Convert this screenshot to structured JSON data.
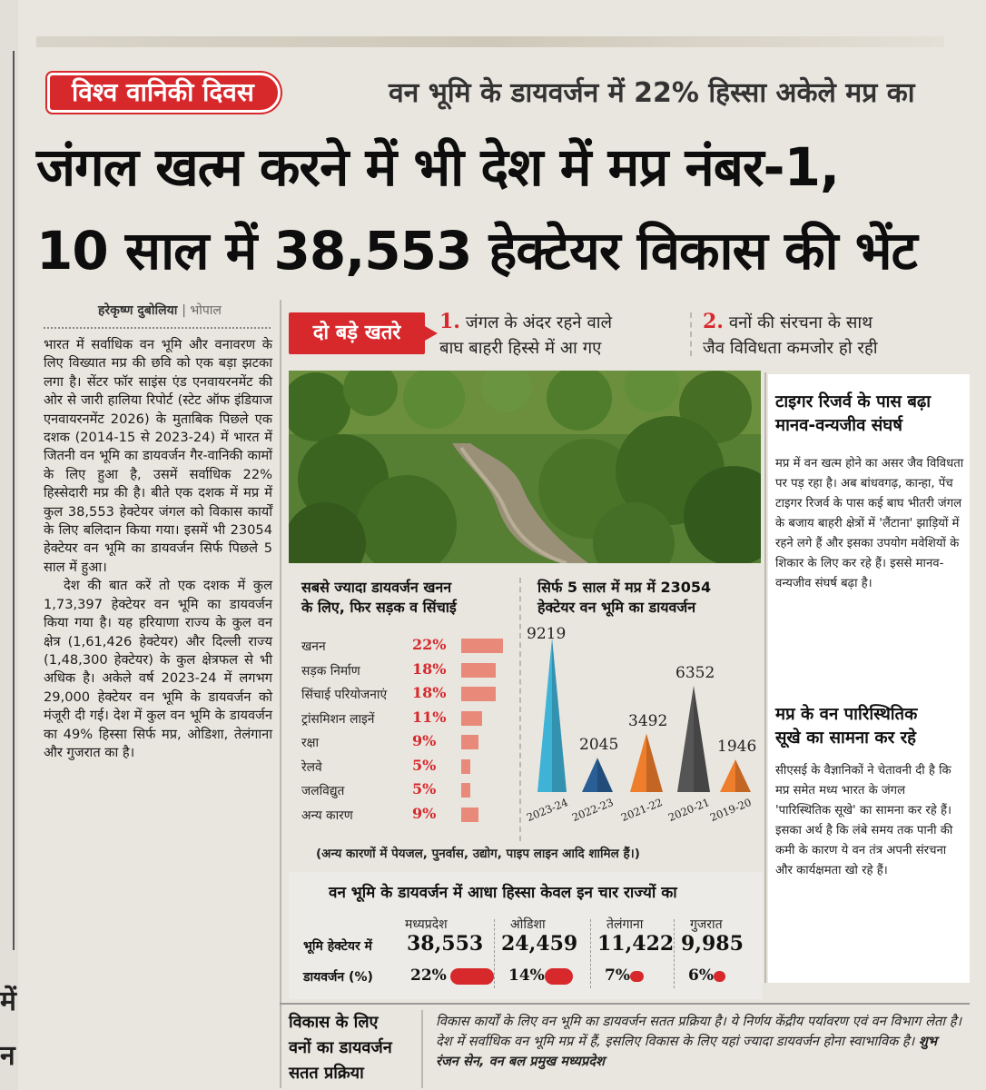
{
  "edge": {
    "word1": "में",
    "word2": "न"
  },
  "kicker": "विश्व वानिकी दिवस",
  "subhead": "वन भूमि के डायवर्जन में 22% हिस्सा अकेले मप्र का",
  "headline": {
    "line1": "जंगल खत्म करने में भी देश में मप्र नंबर-1,",
    "line2": "10 साल में 38,553 हेक्टेयर विकास की भेंट"
  },
  "byline": {
    "author": "हरेकृष्ण दुबोलिया",
    "city": "| भोपाल"
  },
  "body": [
    "भारत में सर्वाधिक वन भूमि और वनावरण के लिए विख्यात मप्र की छवि को एक बड़ा झटका लगा है। सेंटर फॉर साइंस एंड एनवायरनमेंट की ओर से जारी हालिया रिपोर्ट (स्टेट ऑफ इंडियाज एनवायरनमेंट 2026) के मुताबिक पिछले एक दशक (2014-15 से 2023-24) में भारत में जितनी वन भूमि का डायवर्जन गैर-वानिकी कामों के लिए हुआ है, उसमें सर्वाधिक 22% हिस्सेदारी मप्र की है। बीते एक दशक में मप्र में कुल 38,553 हेक्टेयर जंगल को विकास कार्यों के लिए बलिदान किया गया। इसमें भी 23054 हेक्टेयर वन भूमि का डायवर्जन सिर्फ पिछले 5 साल में हुआ।",
    "देश की बात करें तो एक दशक में कुल 1,73,397 हेक्टेयर वन भूमि का डायवर्जन किया गया है। यह हरियाणा राज्य के कुल वन क्षेत्र (1,61,426 हेक्टेयर) और दिल्ली राज्य (1,48,300 हेक्टेयर) के कुल क्षेत्रफल से भी अधिक है। अकेले वर्ष 2023-24 में लगभग 29,000 हेक्टेयर वन भूमि के डायवर्जन को मंजूरी दी गई। देश में कुल वन भूमि के डायवर्जन का 49% हिस्सा सिर्फ मप्र, ओडिशा, तेलंगाना और गुजरात का है।"
  ],
  "threats": {
    "tag": "दो बड़े खतरे",
    "t1_num": "1.",
    "t1_line1": "जंगल के अंदर रहने वाले",
    "t1_line2": "बाघ बाहरी हिस्से में आ गए",
    "t2_num": "2.",
    "t2_line1": "वनों की संरचना के साथ",
    "t2_line2": "जैव विविधता कमजोर हो रही"
  },
  "sidebar": {
    "head1_line1": "टाइगर रिजर्व के पास बढ़ा",
    "head1_line2": "मानव-वन्यजीव संघर्ष",
    "text1": "मप्र में वन खत्म होने का असर जैव विविधता पर पड़ रहा है। अब बांधवगढ़, कान्हा, पेंच टाइगर रिजर्व के पास कई बाघ भीतरी जंगल के बजाय बाहरी क्षेत्रों में 'लैंटाना' झाड़ियों में रहने लगे हैं और इसका उपयोग मवेशियों के शिकार के लिए कर रहे हैं। इससे मानव-वन्यजीव संघर्ष बढ़ा है।",
    "head2_line1": "मप्र के वन पारिस्थितिक",
    "head2_line2": "सूखे का सामना कर रहे",
    "text2": "सीएसई के वैज्ञानिकों ने चेतावनी दी है कि मप्र समेत मध्य भारत के जंगल 'पारिस्थितिक सूखे' का सामना कर रहे हैं। इसका अर्थ है कि लंबे समय तक पानी की कमी के कारण ये वन तंत्र अपनी संरचना और कार्यक्षमता खो रहे हैं।"
  },
  "chart_data": [
    {
      "type": "bar",
      "title": "सबसे ज्यादा डायवर्जन खनन के लिए, फिर सड़क व सिंचाई",
      "title_line1": "सबसे ज्यादा डायवर्जन खनन",
      "title_line2": "के लिए, फिर सड़क व सिंचाई",
      "categories": [
        "खनन",
        "सड़क निर्माण",
        "सिंचाई परियोजनाएं",
        "ट्रांसमिशन लाइनें",
        "रक्षा",
        "रेलवे",
        "जलविद्युत",
        "अन्य कारण"
      ],
      "values": [
        22,
        18,
        18,
        11,
        9,
        5,
        5,
        9
      ],
      "labels": [
        "22%",
        "18%",
        "18%",
        "11%",
        "9%",
        "5%",
        "5%",
        "9%"
      ],
      "color": "#e8897a"
    },
    {
      "type": "bar",
      "title": "सिर्फ 5 साल में मप्र में 23054 हेक्टेयर वन भूमि का डायवर्जन",
      "title_line1": "सिर्फ 5 साल में मप्र में 23054",
      "title_line2": "हेक्टेयर वन भूमि का डायवर्जन",
      "categories": [
        "2023-24",
        "2022-23",
        "2021-22",
        "2020-21",
        "2019-20"
      ],
      "values": [
        9219,
        2045,
        3492,
        6352,
        1946
      ],
      "labels": [
        "9219",
        "2045",
        "3492",
        "6352",
        "1946"
      ],
      "colors": [
        "#3fb3d6",
        "#2a5f96",
        "#ee7d2c",
        "#555555",
        "#ee7d2c"
      ]
    }
  ],
  "note": "(अन्य कारणों में पेयजल, पुनर्वास, उद्योग, पाइप लाइन आदि शामिल हैं।)",
  "states": {
    "title": "वन भूमि के डायवर्जन में आधा हिस्सा केवल इन चार राज्यों का",
    "row1_label": "भूमि हेक्टेयर में",
    "row2_label": "डायवर्जन (%)",
    "items": [
      {
        "name": "मध्यप्रदेश",
        "hectare": "38,553",
        "pct_label": "22%",
        "pct": 22
      },
      {
        "name": "ओडिशा",
        "hectare": "24,459",
        "pct_label": "14%",
        "pct": 14
      },
      {
        "name": "तेलंगाना",
        "hectare": "11,422",
        "pct_label": "7%",
        "pct": 7
      },
      {
        "name": "गुजरात",
        "hectare": "9,985",
        "pct_label": "6%",
        "pct": 6
      }
    ]
  },
  "footer": {
    "head_line1": "विकास के लिए",
    "head_line2": "वनों का डायवर्जन",
    "head_line3": "सतत प्रक्रिया",
    "quote": "विकास कार्यों के लिए वन भूमि का डायवर्जन सतत प्रक्रिया है। ये निर्णय केंद्रीय पर्यावरण एवं वन विभाग लेता है। देश में सर्वाधिक वन भूमि मप्र में हैं, इसलिए विकास के लिए यहां ज्यादा डायवर्जन होना स्वाभाविक है।",
    "author": "शुभ रंजन सेन, वन बल प्रमुख मध्यप्रदेश"
  }
}
